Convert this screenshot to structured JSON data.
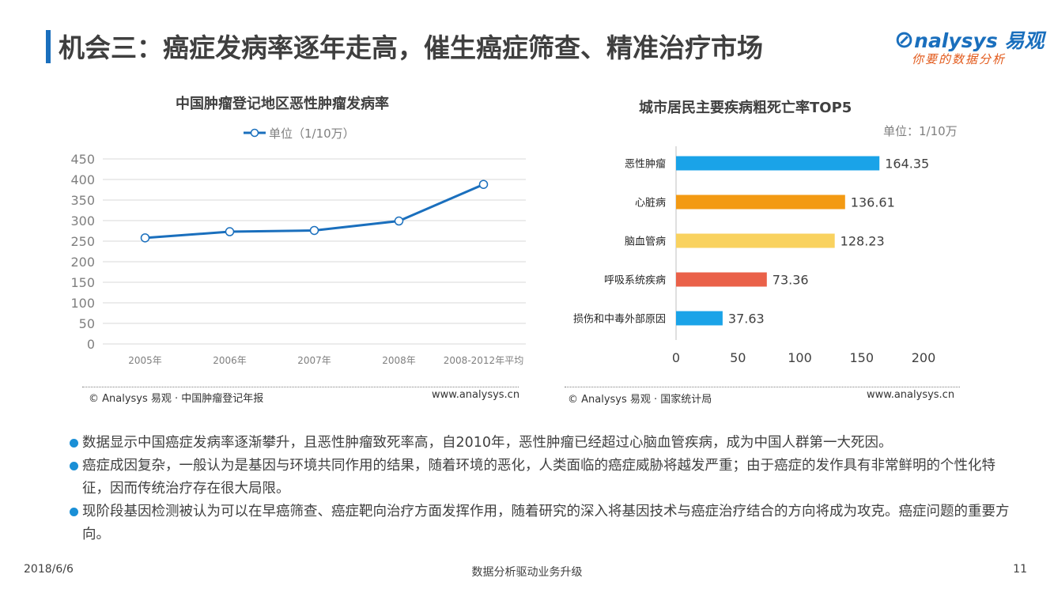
{
  "page": {
    "title": "机会三：癌症发病率逐年走高，催生癌症筛查、精准治疗市场",
    "logo_main": "nalysys 易观",
    "logo_sub": "你要的数据分析"
  },
  "left_chart": {
    "title": "中国肿瘤登记地区恶性肿瘤发病率",
    "source": "© Analysys 易观 · 中国肿瘤登记年报",
    "site": "www.analysys.cn"
  },
  "right_chart": {
    "title": "城市居民主要疾病粗死亡率TOP5",
    "unit": "单位：1/10万",
    "source": "© Analysys 易观 · 国家统计局",
    "site": "www.analysys.cn"
  },
  "chart_data": [
    {
      "type": "line",
      "title": "中国肿瘤登记地区恶性肿瘤发病率",
      "categories": [
        "2005年",
        "2006年",
        "2007年",
        "2008年",
        "2008-2012年平均"
      ],
      "series": [
        {
          "name": "单位（1/10万）",
          "values": [
            258,
            273,
            276,
            299,
            388
          ],
          "color": "#1a6fbd"
        }
      ],
      "ylim": [
        0,
        450
      ],
      "yticks": [
        0,
        50,
        100,
        150,
        200,
        250,
        300,
        350,
        400,
        450
      ],
      "grid": true,
      "legend": "top"
    },
    {
      "type": "bar",
      "orientation": "horizontal",
      "title": "城市居民主要疾病粗死亡率TOP5",
      "categories": [
        "恶性肿瘤",
        "心脏病",
        "脑血管病",
        "呼吸系统疾病",
        "损伤和中毒外部原因"
      ],
      "values": [
        164.35,
        136.61,
        128.23,
        73.36,
        37.63
      ],
      "value_labels": [
        "164.35",
        "136.61",
        "128.23",
        "73.36",
        "37.63"
      ],
      "colors": [
        "#1aa3e8",
        "#f39a13",
        "#f9d25f",
        "#ea6149",
        "#1aa3e8"
      ],
      "xlim": [
        0,
        200
      ],
      "xticks": [
        0,
        50,
        100,
        150,
        200
      ],
      "grid": false
    }
  ],
  "bullets": [
    "数据显示中国癌症发病率逐渐攀升，且恶性肿瘤致死率高，自2010年，恶性肿瘤已经超过心脑血管疾病，成为中国人群第一大死因。",
    "癌症成因复杂，一般认为是基因与环境共同作用的结果，随着环境的恶化，人类面临的癌症威胁将越发严重；由于癌症的发作具有非常鲜明的个性化特征，因而传统治疗存在很大局限。",
    "现阶段基因检测被认为可以在早癌筛查、癌症靶向治疗方面发挥作用，随着研究的深入将基因技术与癌症治疗结合的方向将成为攻克。癌症问题的重要方向。"
  ],
  "footer": {
    "date": "2018/6/6",
    "center": "数据分析驱动业务升级",
    "page_number": "11"
  }
}
